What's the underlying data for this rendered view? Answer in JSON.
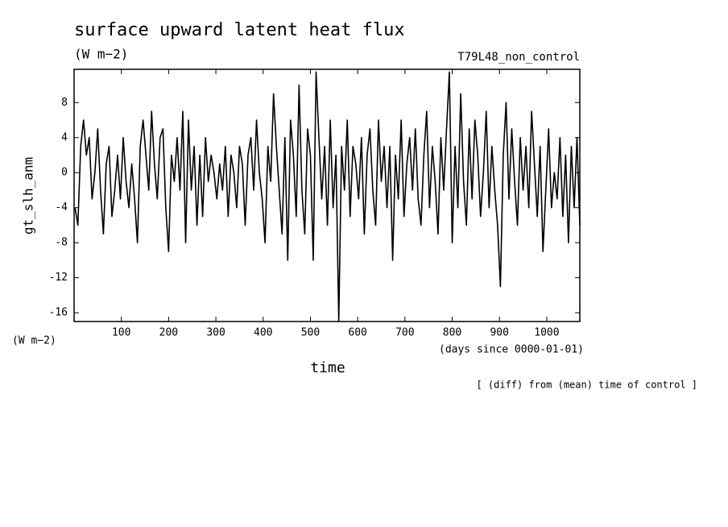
{
  "chart_data": {
    "type": "line",
    "title": "surface upward latent heat flux",
    "units_top": "(W m−2)",
    "run_label": "T79L48_non_control",
    "y_label": "gt_slh_anm",
    "units_y": "(W m−2)",
    "x_units": "(days since 0000-01-01)",
    "x_label": "time",
    "note": "[ (diff) from (mean) time of control ]",
    "xlim": [
      0,
      1070
    ],
    "ylim": [
      -17,
      11.8
    ],
    "xticks": [
      100,
      200,
      300,
      400,
      500,
      600,
      700,
      800,
      900,
      1000
    ],
    "yticks": [
      -16,
      -12,
      -8,
      -4,
      0,
      4,
      8
    ],
    "x": [
      2,
      8,
      14,
      20,
      26,
      32,
      38,
      44,
      50,
      56,
      62,
      68,
      74,
      80,
      86,
      92,
      98,
      104,
      110,
      116,
      122,
      128,
      134,
      140,
      146,
      152,
      158,
      164,
      170,
      176,
      182,
      188,
      194,
      200,
      206,
      212,
      218,
      224,
      230,
      236,
      242,
      248,
      254,
      260,
      266,
      272,
      278,
      284,
      290,
      296,
      302,
      308,
      314,
      320,
      326,
      332,
      338,
      344,
      350,
      356,
      362,
      368,
      374,
      380,
      386,
      392,
      398,
      404,
      410,
      416,
      422,
      428,
      434,
      440,
      446,
      452,
      458,
      464,
      470,
      476,
      482,
      488,
      494,
      500,
      506,
      512,
      518,
      524,
      530,
      536,
      542,
      548,
      554,
      560,
      566,
      572,
      578,
      584,
      590,
      596,
      602,
      608,
      614,
      620,
      626,
      632,
      638,
      644,
      650,
      656,
      662,
      668,
      674,
      680,
      686,
      692,
      698,
      704,
      710,
      716,
      722,
      728,
      734,
      740,
      746,
      752,
      758,
      764,
      770,
      776,
      782,
      788,
      794,
      800,
      806,
      812,
      818,
      824,
      830,
      836,
      842,
      848,
      854,
      860,
      866,
      872,
      878,
      884,
      890,
      896,
      902,
      908,
      914,
      920,
      926,
      932,
      938,
      944,
      950,
      956,
      962,
      968,
      974,
      980,
      986,
      992,
      998,
      1004,
      1010,
      1016,
      1022,
      1028,
      1034,
      1040,
      1046,
      1052,
      1058,
      1064,
      1070
    ],
    "series": [
      {
        "name": "gt_slh_anm",
        "color": "#000000",
        "values": [
          -4,
          -6,
          3,
          6,
          2,
          4,
          -3,
          0,
          5,
          -2,
          -7,
          1,
          3,
          -5,
          -2,
          2,
          -3,
          4,
          -1,
          -4,
          1,
          -3,
          -8,
          3,
          6,
          2,
          -2,
          7,
          1,
          -3,
          4,
          5,
          -4,
          -9,
          2,
          -1,
          4,
          -2,
          7,
          -8,
          6,
          -2,
          3,
          -6,
          2,
          -5,
          4,
          -1,
          2,
          0,
          -3,
          1,
          -2,
          3,
          -5,
          2,
          0,
          -4,
          3,
          1,
          -6,
          2,
          4,
          -2,
          6,
          0,
          -3,
          -8,
          3,
          -1,
          9,
          3,
          -2,
          -7,
          4,
          -10,
          6,
          2,
          -5,
          10,
          -2,
          -7,
          5,
          2,
          -10,
          11.5,
          4,
          -3,
          3,
          -6,
          6,
          -4,
          2,
          -17,
          3,
          -2,
          6,
          -5,
          3,
          1,
          -3,
          4,
          -7,
          2,
          5,
          -2,
          -6,
          6,
          -1,
          3,
          -4,
          3,
          -10,
          2,
          -3,
          6,
          -5,
          1,
          4,
          -2,
          5,
          -3,
          -6,
          2,
          7,
          -4,
          3,
          -1,
          -7,
          4,
          -2,
          5,
          11.5,
          -8,
          3,
          -4,
          9,
          -1,
          -6,
          5,
          -3,
          6,
          2,
          -5,
          0,
          7,
          -4,
          3,
          -2,
          -6,
          -13,
          2,
          8,
          -3,
          5,
          -1,
          -6,
          4,
          -2,
          3,
          -4,
          7,
          1,
          -5,
          3,
          -9,
          -2,
          5,
          -4,
          0,
          -3,
          4,
          -5,
          2,
          -8,
          3,
          -4,
          4,
          -6
        ]
      }
    ]
  }
}
